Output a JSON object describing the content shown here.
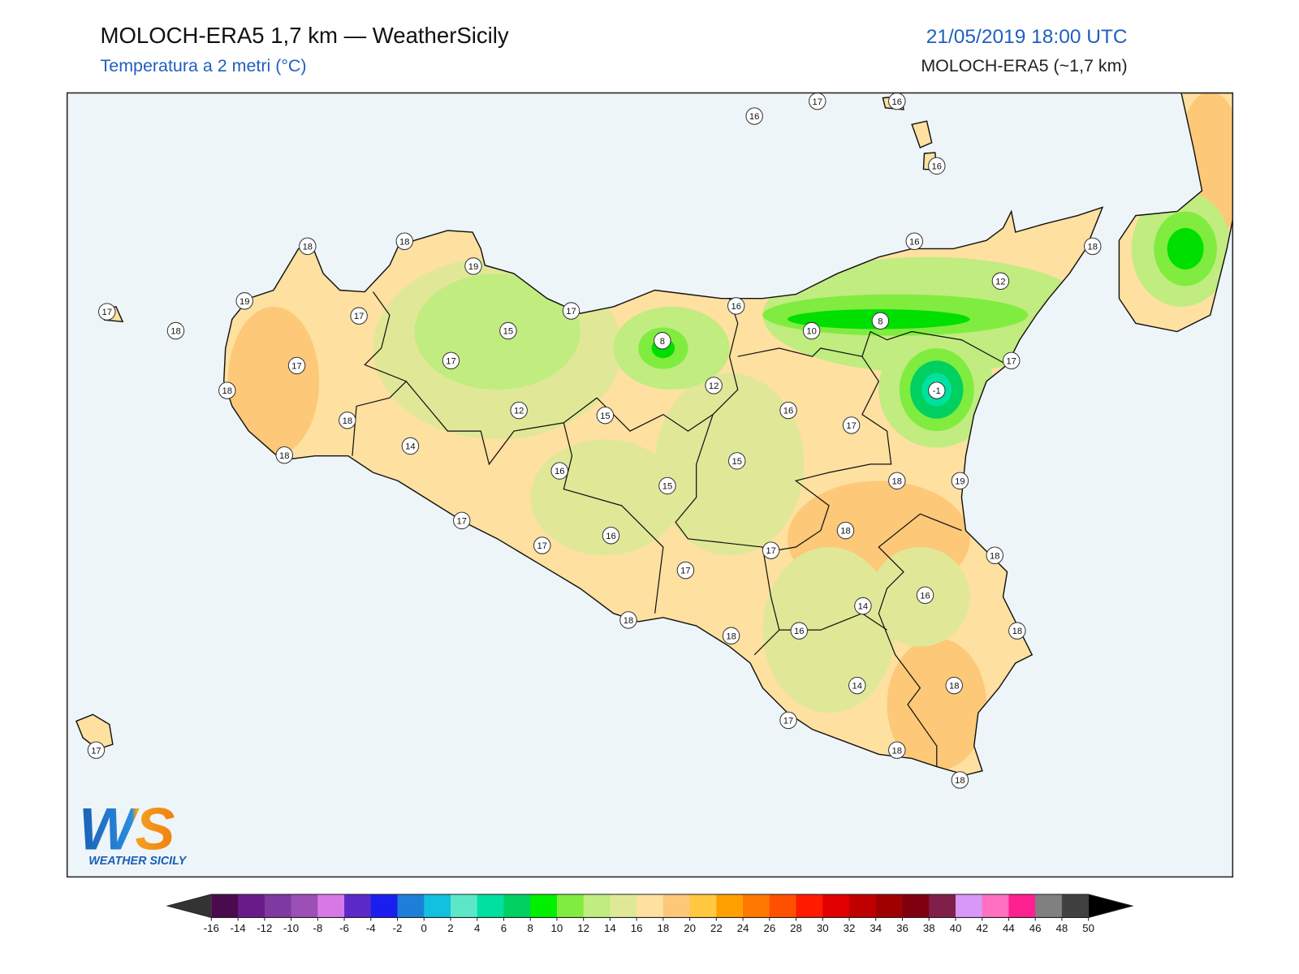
{
  "header": {
    "title": "MOLOCH-ERA5 1,7 km — WeatherSicily",
    "subtitle": "Temperatura a 2 metri (°C)",
    "datetime": "21/05/2019 18:00 UTC",
    "model": "MOLOCH-ERA5 (~1,7 km)"
  },
  "map": {
    "stations": [
      17,
      16,
      16,
      16,
      18,
      18,
      19,
      16,
      18,
      19,
      17,
      18,
      17,
      17,
      16,
      15,
      8,
      10,
      8,
      12,
      17,
      17,
      18,
      12,
      17,
      -1,
      16,
      12,
      15,
      18,
      17,
      14,
      18,
      16,
      15,
      15,
      18,
      19,
      17,
      18,
      16,
      17,
      17,
      18,
      17,
      16,
      14,
      18,
      16,
      18,
      18,
      14,
      18,
      17,
      17,
      18,
      18
    ]
  },
  "colorbar": {
    "ticks": [
      -16,
      -14,
      -12,
      -10,
      -8,
      -6,
      -4,
      -2,
      0,
      2,
      4,
      6,
      8,
      10,
      12,
      14,
      16,
      18,
      20,
      22,
      24,
      26,
      28,
      30,
      32,
      34,
      36,
      38,
      40,
      42,
      44,
      46,
      48,
      50
    ],
    "colors": [
      "#4a0a4e",
      "#6a1b8a",
      "#7e3aa0",
      "#9c4fb5",
      "#d878e6",
      "#5b2ac9",
      "#1a1ff0",
      "#1e7fd9",
      "#12c0e0",
      "#5ce8c8",
      "#00e0a0",
      "#00d060",
      "#00f000",
      "#80ec40",
      "#c0ec80",
      "#e0e898",
      "#fee0a0",
      "#fdc878",
      "#ffc840",
      "#ffa000",
      "#ff7800",
      "#ff5000",
      "#ff1a00",
      "#e00000",
      "#c00000",
      "#a00000",
      "#800010",
      "#80204a",
      "#d898f8",
      "#ff70c0",
      "#ff2090",
      "#808080",
      "#404040"
    ],
    "under_color": "#333333",
    "over_color": "#000000"
  },
  "logo": {
    "mark": "WS",
    "name": "WEATHER SICILY"
  }
}
